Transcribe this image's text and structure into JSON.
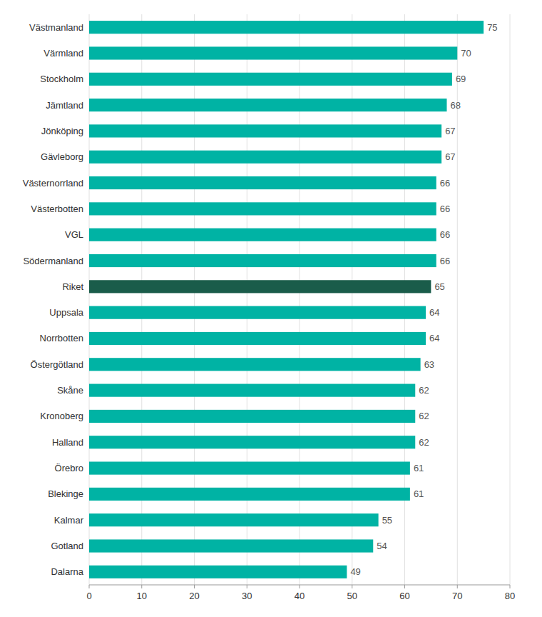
{
  "chart_data": {
    "type": "bar",
    "orientation": "horizontal",
    "categories": [
      "Västmanland",
      "Värmland",
      "Stockholm",
      "Jämtland",
      "Jönköping",
      "Gävleborg",
      "Västernorrland",
      "Västerbotten",
      "VGL",
      "Södermanland",
      "Riket",
      "Uppsala",
      "Norrbotten",
      "Östergötland",
      "Skåne",
      "Kronoberg",
      "Halland",
      "Örebro",
      "Blekinge",
      "Kalmar",
      "Gotland",
      "Dalarna"
    ],
    "values": [
      75,
      70,
      69,
      68,
      67,
      67,
      66,
      66,
      66,
      66,
      65,
      64,
      64,
      63,
      62,
      62,
      62,
      61,
      61,
      55,
      54,
      49
    ],
    "colors": [
      "#00B3A4",
      "#00B3A4",
      "#00B3A4",
      "#00B3A4",
      "#00B3A4",
      "#00B3A4",
      "#00B3A4",
      "#00B3A4",
      "#00B3A4",
      "#00B3A4",
      "#1A5C4A",
      "#00B3A4",
      "#00B3A4",
      "#00B3A4",
      "#00B3A4",
      "#00B3A4",
      "#00B3A4",
      "#00B3A4",
      "#00B3A4",
      "#00B3A4",
      "#00B3A4",
      "#00B3A4"
    ],
    "xlim": [
      0,
      80
    ],
    "xticks": [
      0,
      10,
      20,
      30,
      40,
      50,
      60,
      70,
      80
    ],
    "grid": true,
    "data_labels": true
  }
}
